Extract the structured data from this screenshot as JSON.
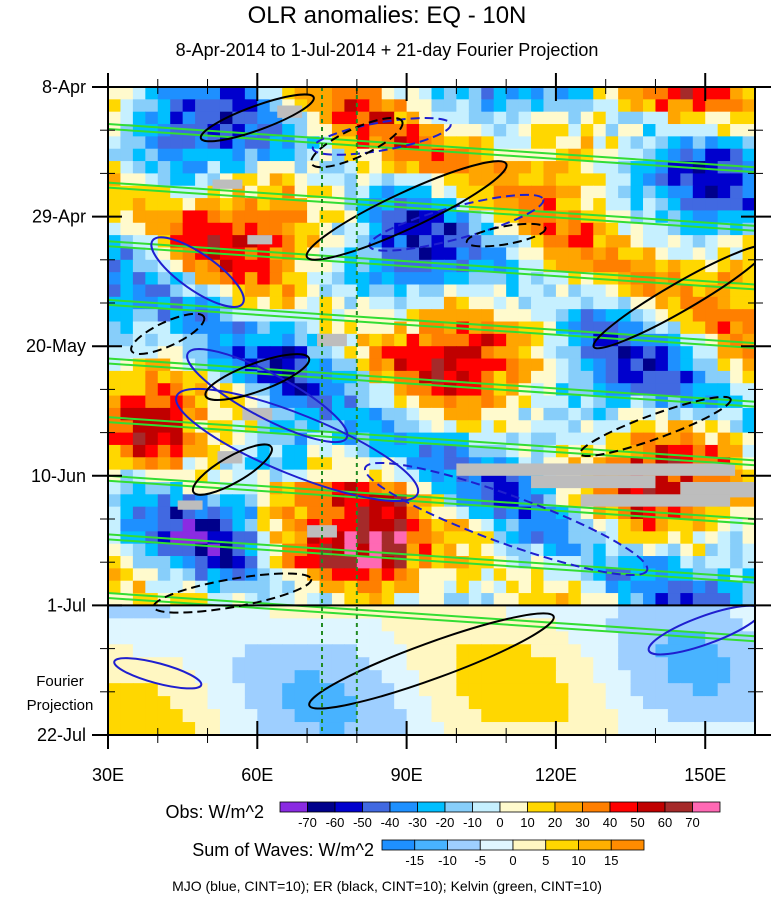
{
  "chart_data": {
    "type": "heatmap",
    "title": "OLR anomalies: EQ - 10N",
    "subtitle": "8-Apr-2014 to 1-Jul-2014 + 21-day Fourier Projection",
    "x_ticks": [
      {
        "value": 30,
        "label": "30E"
      },
      {
        "value": 60,
        "label": "60E"
      },
      {
        "value": 90,
        "label": "90E"
      },
      {
        "value": 120,
        "label": "120E"
      },
      {
        "value": 150,
        "label": "150E"
      }
    ],
    "xlim": [
      30,
      160
    ],
    "y_ticks": [
      {
        "value": 0,
        "label": "8-Apr"
      },
      {
        "value": 21,
        "label": "29-Apr"
      },
      {
        "value": 42,
        "label": "20-May"
      },
      {
        "value": 63,
        "label": "10-Jun"
      },
      {
        "value": 84,
        "label": "1-Jul"
      },
      {
        "value": 105,
        "label": "22-Jul"
      }
    ],
    "ylim": [
      0,
      105
    ],
    "projection_label_line1": "Fourier",
    "projection_label_line2": "Projection",
    "projection_start_day": 84,
    "vertical_reference_lines_lon": [
      73,
      80
    ],
    "obs_colorbar": {
      "title": "Obs: W/m^2",
      "levels": [
        -70,
        -60,
        -50,
        -40,
        -30,
        -20,
        -10,
        0,
        10,
        20,
        30,
        40,
        50,
        60,
        70
      ],
      "colors": [
        "#8a2be2",
        "#00008b",
        "#0000cd",
        "#4169e1",
        "#1e90ff",
        "#00bfff",
        "#87cefa",
        "#c6f0ff",
        "#fffacd",
        "#ffd700",
        "#ffa500",
        "#ff7f00",
        "#ff0000",
        "#c00000",
        "#a52a2a",
        "#ff69b4"
      ]
    },
    "waves_colorbar": {
      "title": "Sum of Waves: W/m^2",
      "levels": [
        -15,
        -10,
        -5,
        0,
        5,
        10,
        15
      ],
      "colors": [
        "#1e90ff",
        "#48b3ff",
        "#9ecfff",
        "#dff6ff",
        "#fff7c2",
        "#ffd700",
        "#ffb000",
        "#ff8c00"
      ]
    },
    "contour_legend": "MJO (blue, CINT=10); ER (black, CINT=10); Kelvin (green, CINT=10)",
    "series": [
      {
        "name": "MJO",
        "color": "#1f1fcf"
      },
      {
        "name": "ER",
        "color": "#000000"
      },
      {
        "name": "Kelvin",
        "color": "#33dd33"
      }
    ]
  }
}
